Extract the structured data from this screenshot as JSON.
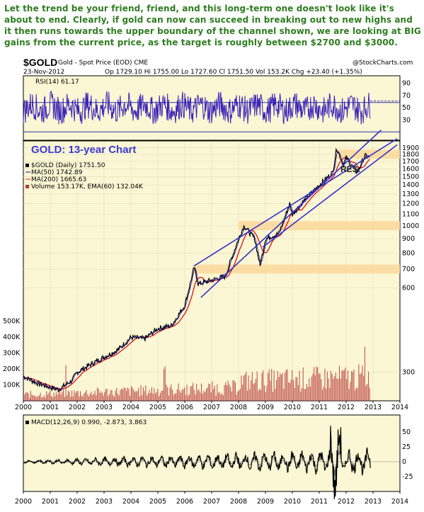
{
  "headline": "Let the trend be your friend, friend, and this long-term one doesn't look like it's about to end. Clearly, if gold can now can succeed  in breaking out to new highs and it then runs towards the upper boundary of the channel shown, we are looking at BIG gains from the current price, as the target is roughly between $2700 and $3000.",
  "header": {
    "symbol": "$GOLD",
    "name": "Gold - Spot Price (EOD) CME",
    "brand": "@StockCharts.com",
    "date": "23-Nov-2012",
    "quote": "Op 1729.10  Hi 1755.00  Lo 1727.60  Cl 1751.50  Vol 153.2K  Chg +23.40 (+1.35%)"
  },
  "colors": {
    "panel_bg": "#fbf6d4",
    "price": "#000000",
    "ma50": "#1a1aa0",
    "ma200": "#e01010",
    "volume": "#b83a3a",
    "channel": "#3232cc",
    "rsi": "#3b23b8",
    "band": "#fad89b",
    "title_blue": "#3a3ad6"
  },
  "rsi_panel": {
    "label": "RSI(14) 61.17",
    "y_ticks": [
      "90",
      "70",
      "50",
      "30"
    ]
  },
  "price_panel": {
    "big_title": "GOLD: 13-year Chart",
    "res_label": "RES.",
    "legend": [
      "$GOLD (Daily) 1751.50",
      "MA(50) 1742.89",
      "MA(200) 1665.63",
      "Volume 153.17K, EMA(60) 132.04K"
    ],
    "y_ticks": [
      "1900",
      "1800",
      "1700",
      "1600",
      "1500",
      "1400",
      "1300",
      "1200",
      "1100",
      "1000",
      "900",
      "800",
      "700",
      "600",
      "300"
    ],
    "volume_ticks": [
      "500K",
      "400K",
      "300K",
      "200K",
      "100K"
    ]
  },
  "macd_panel": {
    "label": "MACD(12,26,9) 0.990, -2.873, 3.863",
    "y_ticks": [
      "50",
      "25",
      "0",
      "-25"
    ]
  },
  "x_axis": {
    "years": [
      "2000",
      "2001",
      "2002",
      "2003",
      "2004",
      "2005",
      "2006",
      "2007",
      "2008",
      "2009",
      "2010",
      "2011",
      "2012",
      "2013",
      "2014"
    ]
  },
  "chart_data": {
    "type": "line",
    "title": "GOLD: 13-year Chart",
    "y_scale": "log",
    "series": [
      {
        "name": "$GOLD (Daily) 1751.50",
        "x": [
          2000,
          2000.5,
          2001,
          2001.3,
          2001.8,
          2002,
          2002.5,
          2003,
          2003.5,
          2004,
          2004.5,
          2005,
          2005.5,
          2006,
          2006.35,
          2006.5,
          2007,
          2007.5,
          2008,
          2008.2,
          2008.6,
          2008.8,
          2009,
          2009.5,
          2009.9,
          2010,
          2010.5,
          2011,
          2011.5,
          2011.65,
          2011.9,
          2012,
          2012.4,
          2012.7,
          2012.9
        ],
        "y": [
          290,
          275,
          265,
          260,
          280,
          300,
          320,
          340,
          360,
          400,
          395,
          430,
          440,
          520,
          710,
          620,
          640,
          660,
          900,
          1000,
          900,
          720,
          900,
          940,
          1200,
          1100,
          1250,
          1400,
          1550,
          1900,
          1650,
          1750,
          1550,
          1780,
          1751.5
        ]
      },
      {
        "name": "MA(50) 1742.89",
        "last": 1742.89
      },
      {
        "name": "MA(200) 1665.63",
        "last": 1665.63
      },
      {
        "name": "Volume 153.17K, EMA(60) 132.04K",
        "last": 153.17,
        "ema": 132.04,
        "unit": "K"
      }
    ],
    "resistance_bands": [
      1800,
      1000,
      700
    ],
    "channel": {
      "upper": [
        [
          2006.35,
          720
        ],
        [
          2014,
          2000
        ]
      ],
      "lower": [
        [
          2006.6,
          560
        ],
        [
          2014,
          2300
        ]
      ]
    },
    "rsi_last": 61.17,
    "macd_last": [
      0.99,
      -2.873,
      3.863
    ],
    "xlim": [
      2000,
      2014
    ],
    "ylim": [
      240,
      2000
    ]
  }
}
